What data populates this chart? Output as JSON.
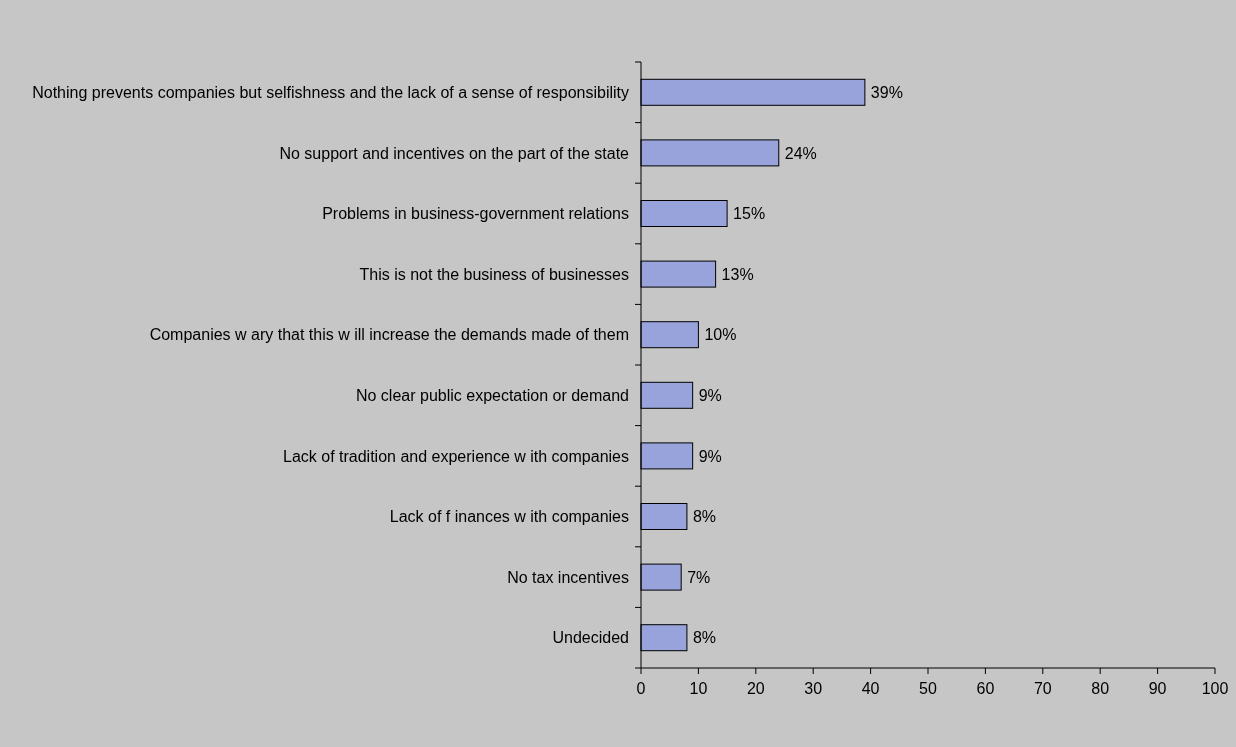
{
  "chart_data": {
    "type": "bar",
    "orientation": "horizontal",
    "categories": [
      "Nothing prevents companies but selfishness and the lack of a sense of responsibility",
      "No support and incentives on the part of the state",
      "Problems in business-government relations",
      "This is not the business of businesses",
      "Companies w ary that this w ill increase the demands made of them",
      "No clear public expectation or demand",
      "Lack of tradition and experience w ith companies",
      "Lack of f inances w ith companies",
      "No tax incentives",
      "Undecided"
    ],
    "values": [
      39,
      24,
      15,
      13,
      10,
      9,
      9,
      8,
      7,
      8
    ],
    "value_labels": [
      "39%",
      "24%",
      "15%",
      "13%",
      "10%",
      "9%",
      "9%",
      "8%",
      "7%",
      "8%"
    ],
    "color": "#99a3db",
    "xlim": [
      0,
      100
    ],
    "xticks": [
      0,
      10,
      20,
      30,
      40,
      50,
      60,
      70,
      80,
      90,
      100
    ]
  }
}
